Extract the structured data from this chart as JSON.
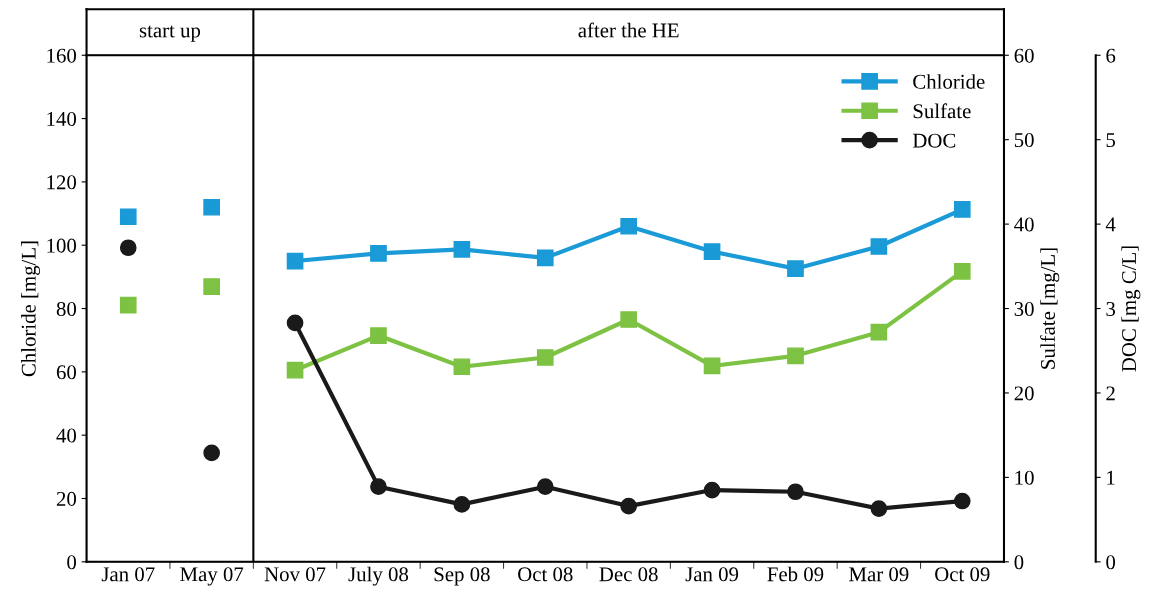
{
  "chart_data": {
    "type": "line",
    "categories": [
      "Jan 07",
      "May 07",
      "Nov 07",
      "July 08",
      "Sep 08",
      "Oct 08",
      "Dec 08",
      "Jan 09",
      "Feb 09",
      "Mar 09",
      "Oct 09"
    ],
    "ylabel": "Chloride [mg/L]",
    "y2label": "Sulfate [mg/L]",
    "y3label": "DOC [mg C/L]",
    "ylim": [
      0,
      160
    ],
    "yticks": [
      0,
      20,
      40,
      60,
      80,
      100,
      120,
      140,
      160
    ],
    "y2lim": [
      0,
      60
    ],
    "y2ticks": [
      0,
      10,
      20,
      30,
      40,
      50,
      60
    ],
    "y3lim": [
      0,
      6
    ],
    "y3ticks": [
      0,
      1,
      2,
      3,
      4,
      5,
      6
    ],
    "series": [
      {
        "name": "Chloride",
        "color": "#1a9ad6",
        "marker": "square",
        "values": [
          null,
          null,
          95,
          97.4,
          98.7,
          96,
          106,
          98,
          92.6,
          99.6,
          111.3
        ]
      },
      {
        "name": "Sulfate",
        "color": "#7dc242",
        "marker": "square",
        "axis": "y2",
        "values": [
          null,
          null,
          22.7,
          26.8,
          23.1,
          24.2,
          28.7,
          23.2,
          24.4,
          27.2,
          34.4
        ]
      },
      {
        "name": "DOC",
        "color": "#1a1a1a",
        "marker": "circle",
        "axis": "y3",
        "values": [
          null,
          null,
          2.83,
          0.89,
          0.68,
          0.89,
          0.66,
          0.85,
          0.83,
          0.63,
          0.72
        ]
      },
      {
        "type": "scatter",
        "color": "#1a9ad6",
        "marker": "square",
        "values": [
          109,
          112,
          null,
          null,
          null,
          null,
          null,
          null,
          null,
          null,
          null
        ]
      },
      {
        "type": "scatter",
        "color": "#7dc242",
        "marker": "square",
        "axis": "y2",
        "values": [
          30.4,
          32.6,
          null,
          null,
          null,
          null,
          null,
          null,
          null,
          null,
          null
        ]
      },
      {
        "type": "scatter",
        "color": "#1a1a1a",
        "marker": "circle",
        "axis": "y3",
        "values": [
          3.72,
          1.29,
          null,
          null,
          null,
          null,
          null,
          null,
          null,
          null,
          null
        ]
      }
    ],
    "annotations": [
      "start up",
      "after the HE"
    ],
    "grid": false,
    "legend": "top right"
  }
}
